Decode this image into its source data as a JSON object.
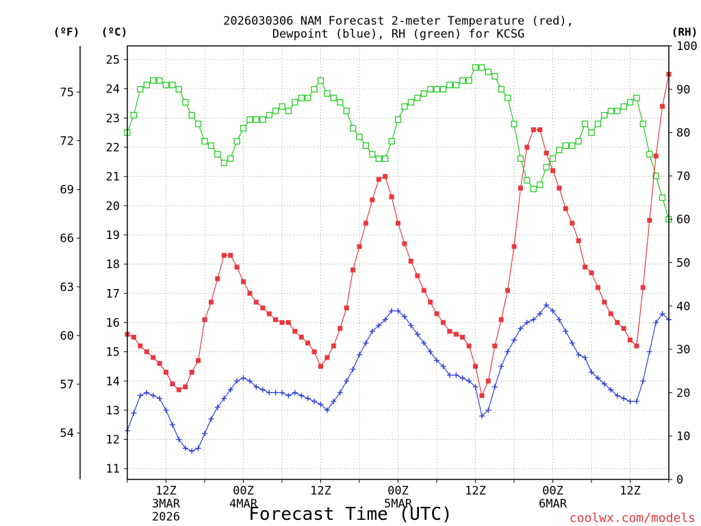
{
  "credit": "coolwx.com/models",
  "chart_data": {
    "type": "line",
    "title": [
      "2026030306 NAM Forecast 2-meter Temperature (red),",
      "Dewpoint (blue), RH (green) for KCSG"
    ],
    "xlabel": "Forecast Time (UTC)",
    "grid": true,
    "axes": {
      "celsius": {
        "label": "(ºC)",
        "range": [
          10.63,
          25.47
        ],
        "ticks": [
          11,
          12,
          13,
          14,
          15,
          16,
          17,
          18,
          19,
          20,
          21,
          22,
          23,
          24,
          25
        ]
      },
      "fahrenheit": {
        "label": "(ºF)",
        "ticks": [
          54,
          57,
          60,
          63,
          66,
          69,
          72,
          75
        ]
      },
      "rh": {
        "label": "(RH)",
        "range": [
          0,
          100
        ],
        "ticks": [
          0,
          10,
          20,
          30,
          40,
          50,
          60,
          70,
          80,
          90,
          100
        ]
      }
    },
    "x_ticks": [
      {
        "at": "2026-03-03 12Z",
        "time": "12Z",
        "day": "3MAR",
        "year": "2026"
      },
      {
        "at": "2026-03-04 00Z",
        "time": "00Z",
        "day": "4MAR"
      },
      {
        "at": "2026-03-04 12Z",
        "time": "12Z"
      },
      {
        "at": "2026-03-05 00Z",
        "time": "00Z",
        "day": "5MAR"
      },
      {
        "at": "2026-03-05 12Z",
        "time": "12Z"
      },
      {
        "at": "2026-03-06 00Z",
        "time": "00Z",
        "day": "6MAR"
      },
      {
        "at": "2026-03-06 12Z",
        "time": "12Z"
      }
    ],
    "x": [
      "2026-03-03 06Z",
      "2026-03-03 07Z",
      "2026-03-03 08Z",
      "2026-03-03 09Z",
      "2026-03-03 10Z",
      "2026-03-03 11Z",
      "2026-03-03 12Z",
      "2026-03-03 13Z",
      "2026-03-03 14Z",
      "2026-03-03 15Z",
      "2026-03-03 16Z",
      "2026-03-03 17Z",
      "2026-03-03 18Z",
      "2026-03-03 19Z",
      "2026-03-03 20Z",
      "2026-03-03 21Z",
      "2026-03-03 22Z",
      "2026-03-03 23Z",
      "2026-03-04 00Z",
      "2026-03-04 01Z",
      "2026-03-04 02Z",
      "2026-03-04 03Z",
      "2026-03-04 04Z",
      "2026-03-04 05Z",
      "2026-03-04 06Z",
      "2026-03-04 07Z",
      "2026-03-04 08Z",
      "2026-03-04 09Z",
      "2026-03-04 10Z",
      "2026-03-04 11Z",
      "2026-03-04 12Z",
      "2026-03-04 13Z",
      "2026-03-04 14Z",
      "2026-03-04 15Z",
      "2026-03-04 16Z",
      "2026-03-04 17Z",
      "2026-03-04 18Z",
      "2026-03-04 19Z",
      "2026-03-04 20Z",
      "2026-03-04 21Z",
      "2026-03-04 22Z",
      "2026-03-04 23Z",
      "2026-03-05 00Z",
      "2026-03-05 01Z",
      "2026-03-05 02Z",
      "2026-03-05 03Z",
      "2026-03-05 04Z",
      "2026-03-05 05Z",
      "2026-03-05 06Z",
      "2026-03-05 07Z",
      "2026-03-05 08Z",
      "2026-03-05 09Z",
      "2026-03-05 10Z",
      "2026-03-05 11Z",
      "2026-03-05 12Z",
      "2026-03-05 13Z",
      "2026-03-05 14Z",
      "2026-03-05 15Z",
      "2026-03-05 16Z",
      "2026-03-05 17Z",
      "2026-03-05 18Z",
      "2026-03-05 19Z",
      "2026-03-05 20Z",
      "2026-03-05 21Z",
      "2026-03-05 22Z",
      "2026-03-05 23Z",
      "2026-03-06 00Z",
      "2026-03-06 01Z",
      "2026-03-06 02Z",
      "2026-03-06 03Z",
      "2026-03-06 04Z",
      "2026-03-06 05Z",
      "2026-03-06 06Z",
      "2026-03-06 07Z",
      "2026-03-06 08Z",
      "2026-03-06 09Z",
      "2026-03-06 10Z",
      "2026-03-06 11Z",
      "2026-03-06 12Z",
      "2026-03-06 13Z",
      "2026-03-06 14Z",
      "2026-03-06 15Z",
      "2026-03-06 16Z",
      "2026-03-06 17Z",
      "2026-03-06 18Z"
    ],
    "series": {
      "temperature": {
        "color": "#e8383d",
        "marker": "filled-square",
        "values": [
          15.6,
          15.5,
          15.2,
          15.0,
          14.8,
          14.6,
          14.3,
          13.9,
          13.7,
          13.8,
          14.3,
          14.7,
          16.1,
          16.7,
          17.5,
          18.3,
          18.3,
          17.9,
          17.4,
          17.0,
          16.7,
          16.5,
          16.3,
          16.1,
          16.0,
          16.0,
          15.7,
          15.5,
          15.3,
          15.0,
          14.5,
          14.8,
          15.2,
          15.8,
          16.5,
          17.8,
          18.6,
          19.4,
          20.2,
          20.9,
          21.0,
          20.3,
          19.4,
          18.7,
          18.1,
          17.6,
          17.1,
          16.7,
          16.3,
          16.0,
          15.7,
          15.6,
          15.5,
          15.2,
          14.5,
          13.5,
          14.0,
          15.2,
          16.1,
          17.1,
          18.6,
          20.6,
          22.0,
          22.6,
          22.6,
          21.8,
          21.2,
          20.6,
          19.9,
          19.4,
          18.8,
          17.9,
          17.7,
          17.2,
          16.7,
          16.3,
          16.0,
          15.8,
          15.4,
          15.2,
          17.2,
          19.5,
          21.7,
          23.4,
          24.5
        ]
      },
      "dewpoint": {
        "color": "#2b3fd9",
        "marker": "plus",
        "values": [
          12.3,
          12.9,
          13.5,
          13.6,
          13.5,
          13.4,
          13.0,
          12.5,
          12.0,
          11.7,
          11.6,
          11.7,
          12.2,
          12.7,
          13.1,
          13.4,
          13.7,
          14.0,
          14.1,
          14.0,
          13.8,
          13.7,
          13.6,
          13.6,
          13.6,
          13.5,
          13.6,
          13.5,
          13.4,
          13.3,
          13.2,
          13.0,
          13.3,
          13.6,
          14.0,
          14.4,
          14.9,
          15.3,
          15.7,
          15.9,
          16.1,
          16.4,
          16.4,
          16.2,
          15.9,
          15.6,
          15.3,
          15.0,
          14.7,
          14.5,
          14.2,
          14.2,
          14.1,
          14.0,
          13.8,
          12.8,
          13.0,
          13.8,
          14.5,
          15.0,
          15.4,
          15.8,
          16.0,
          16.1,
          16.3,
          16.6,
          16.4,
          16.1,
          15.7,
          15.3,
          14.9,
          14.8,
          14.3,
          14.1,
          13.9,
          13.7,
          13.5,
          13.4,
          13.3,
          13.3,
          14.0,
          15.0,
          16.0,
          16.3,
          16.1
        ]
      },
      "rh": {
        "color": "#22cc22",
        "marker": "open-square",
        "values": [
          80,
          84,
          90,
          91,
          92,
          92,
          91,
          91,
          90,
          87,
          84,
          82,
          78,
          77,
          75,
          73,
          74,
          78,
          81,
          83,
          83,
          83,
          84,
          85,
          86,
          85,
          87,
          88,
          88,
          90,
          92,
          89,
          88,
          87,
          85,
          81,
          79,
          77,
          75,
          74,
          74,
          78,
          83,
          86,
          87,
          88,
          89,
          90,
          90,
          90,
          91,
          91,
          92,
          92,
          95,
          95,
          94,
          93,
          90,
          88,
          82,
          74,
          69,
          67,
          68,
          72,
          74,
          76,
          77,
          77,
          78,
          82,
          80,
          82,
          84,
          85,
          85,
          86,
          87,
          88,
          82,
          75,
          70,
          65,
          60
        ]
      }
    }
  }
}
